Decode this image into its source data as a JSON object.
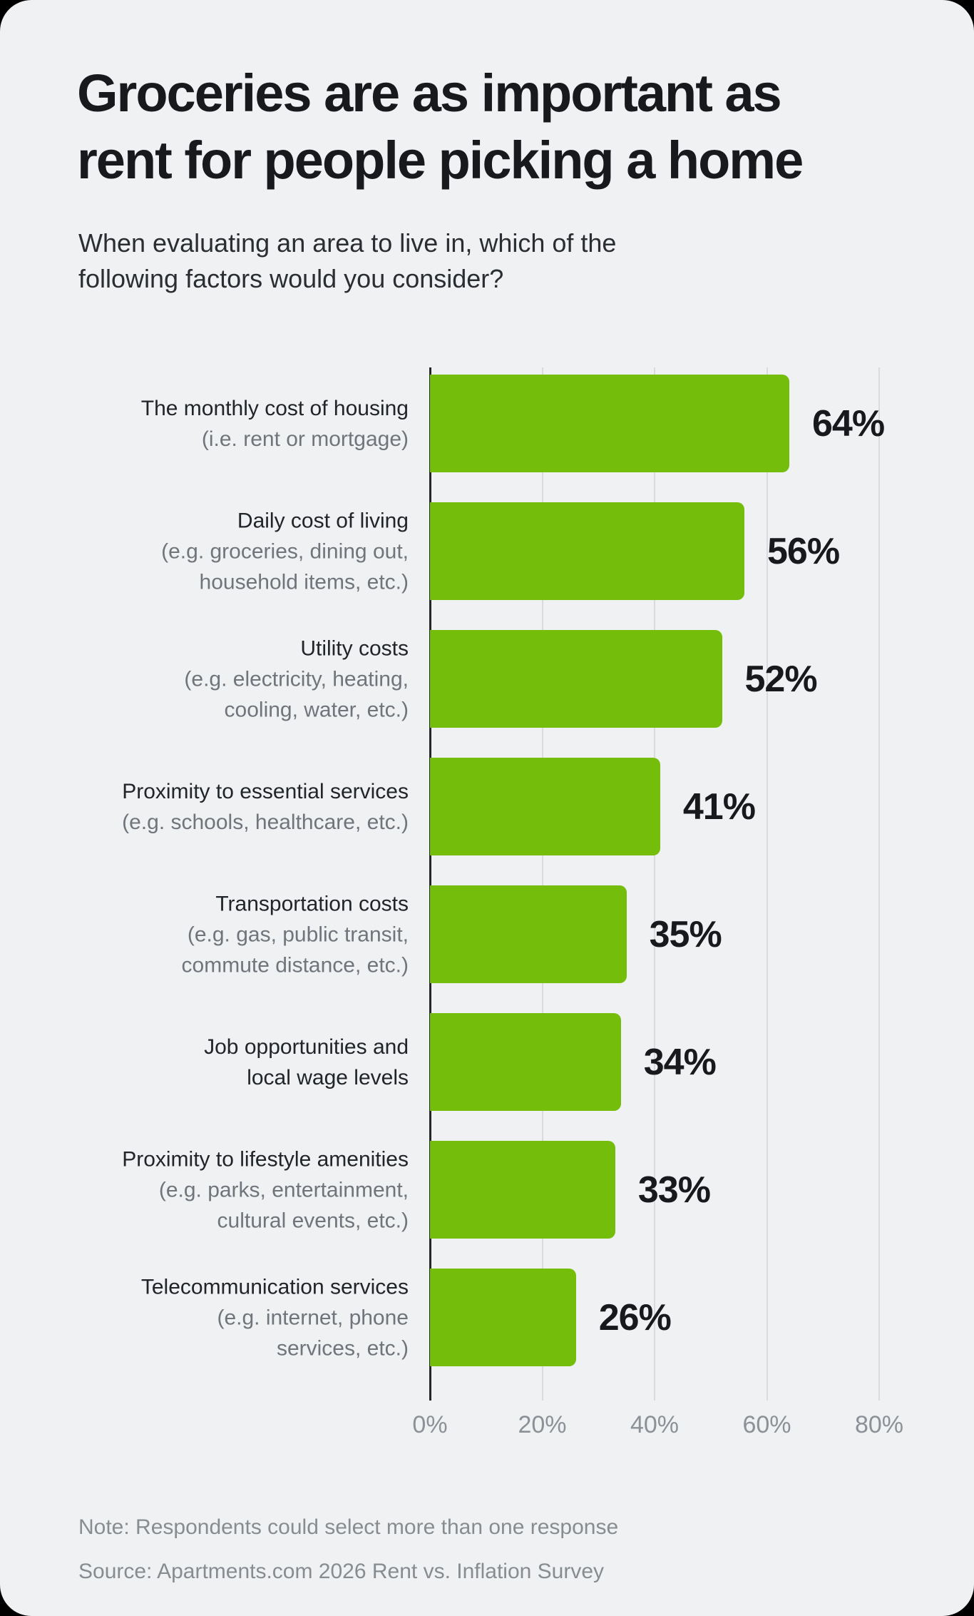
{
  "colors": {
    "outer_background": "#000000",
    "card_background": "#f0f1f3",
    "bar": "#74be0b",
    "title": "#17191c",
    "subtitle": "#2a2d31",
    "label_main": "#212428",
    "label_sub": "#6f757b",
    "tick": "#8b9196",
    "footnote": "#878c91",
    "axis": "#24272a",
    "grid": "#d9dbde"
  },
  "header": {
    "title_lines": [
      "Groceries are as important as",
      "rent for people picking a home"
    ],
    "subtitle_lines": [
      "When evaluating an area to live in, which of the",
      "following factors would you consider?"
    ]
  },
  "chart_data": {
    "type": "bar",
    "orientation": "horizontal",
    "title": "Groceries are as important as rent for people picking a home",
    "subtitle": "When evaluating an area to live in, which of the following factors would you consider?",
    "categories": [
      "The monthly cost of housing (i.e. rent or mortgage)",
      "Daily cost of living (e.g. groceries, dining out, household items, etc.)",
      "Utility costs (e.g. electricity, heating, cooling, water, etc.)",
      "Proximity to essential services (e.g. schools, healthcare, etc.)",
      "Transportation costs (e.g. gas, public transit, commute distance, etc.)",
      "Job opportunities and local wage levels",
      "Proximity to lifestyle amenities (e.g. parks, entertainment, cultural events, etc.)",
      "Telecommunication services (e.g. internet, phone services, etc.)"
    ],
    "values": [
      64,
      56,
      52,
      41,
      35,
      34,
      33,
      26
    ],
    "data_labels": [
      "64%",
      "56%",
      "52%",
      "41%",
      "35%",
      "34%",
      "33%",
      "26%"
    ],
    "xlabel": "",
    "ylabel": "",
    "xlim": [
      0,
      80
    ],
    "xtick_values": [
      0,
      20,
      40,
      60,
      80
    ],
    "xtick_labels": [
      "0%",
      "20%",
      "40%",
      "60%",
      "80%"
    ],
    "grid": true,
    "legend": false,
    "bar_color": "#74be0b"
  },
  "rows": [
    {
      "main_lines": [
        "The monthly cost of housing"
      ],
      "sub_lines": [
        "(i.e. rent or mortgage)"
      ],
      "value": 64,
      "label": "64%"
    },
    {
      "main_lines": [
        "Daily cost of living"
      ],
      "sub_lines": [
        "(e.g. groceries, dining out,",
        "household items, etc.)"
      ],
      "value": 56,
      "label": "56%"
    },
    {
      "main_lines": [
        "Utility costs"
      ],
      "sub_lines": [
        "(e.g. electricity, heating,",
        "cooling, water, etc.)"
      ],
      "value": 52,
      "label": "52%"
    },
    {
      "main_lines": [
        "Proximity to essential services"
      ],
      "sub_lines": [
        "(e.g. schools, healthcare, etc.)"
      ],
      "value": 41,
      "label": "41%"
    },
    {
      "main_lines": [
        "Transportation costs"
      ],
      "sub_lines": [
        "(e.g. gas, public transit,",
        "commute distance, etc.)"
      ],
      "value": 35,
      "label": "35%"
    },
    {
      "main_lines": [
        "Job opportunities and",
        "local wage levels"
      ],
      "sub_lines": [],
      "value": 34,
      "label": "34%"
    },
    {
      "main_lines": [
        "Proximity to lifestyle amenities"
      ],
      "sub_lines": [
        "(e.g. parks, entertainment,",
        "cultural events, etc.)"
      ],
      "value": 33,
      "label": "33%"
    },
    {
      "main_lines": [
        "Telecommunication services"
      ],
      "sub_lines": [
        "(e.g. internet, phone",
        "services, etc.)"
      ],
      "value": 26,
      "label": "26%"
    }
  ],
  "footer": {
    "note": "Note: Respondents could select more than one response",
    "source": "Source: Apartments.com 2026 Rent vs. Inflation Survey"
  }
}
